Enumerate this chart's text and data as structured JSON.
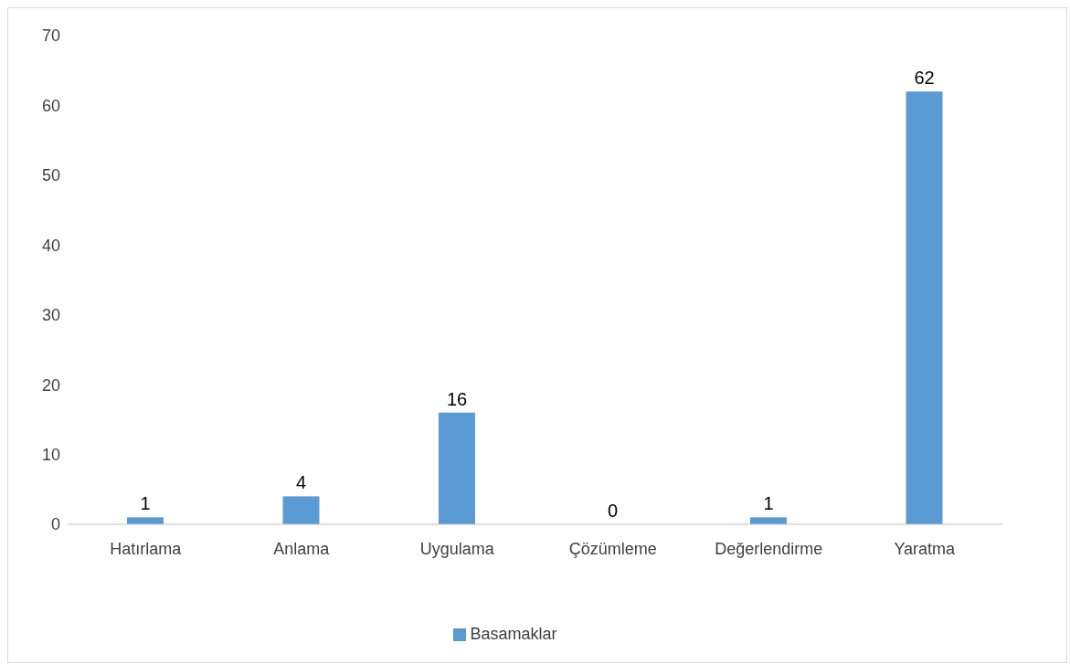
{
  "chart_data": {
    "type": "bar",
    "categories": [
      "Hatırlama",
      "Anlama",
      "Uygulama",
      "Çözümleme",
      "Değerlendirme",
      "Yaratma"
    ],
    "series": [
      {
        "name": "Basamaklar",
        "color": "#5b9bd5",
        "values": [
          1,
          4,
          16,
          0,
          1,
          62
        ]
      }
    ],
    "ylim": [
      0,
      70
    ],
    "yticks": [
      0,
      10,
      20,
      30,
      40,
      50,
      60,
      70
    ],
    "grid": false,
    "legend": "bottom",
    "data_labels": true
  }
}
